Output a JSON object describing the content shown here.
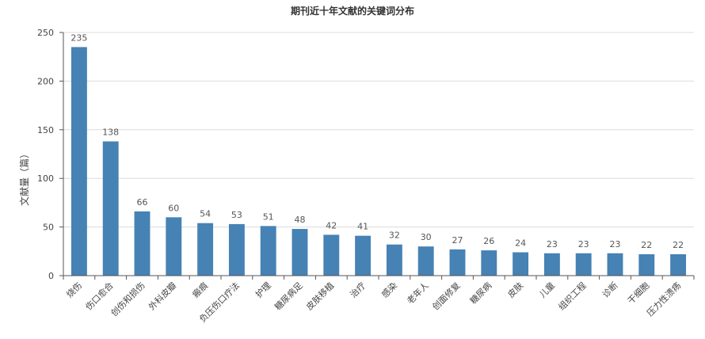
{
  "chart_data": {
    "type": "bar",
    "title": "期刊近十年文献的关键词分布",
    "ylabel": "文献量（篇）",
    "xlabel": "",
    "ylim": [
      0,
      250
    ],
    "yticks": [
      0,
      50,
      100,
      150,
      200,
      250
    ],
    "grid": true,
    "bar_color": "#4682b4",
    "categories": [
      "烧伤",
      "伤口愈合",
      "创伤和损伤",
      "外科皮瓣",
      "瘢痕",
      "负压伤口疗法",
      "护理",
      "糖尿病足",
      "皮肤移植",
      "治疗",
      "感染",
      "老年人",
      "创面修复",
      "糖尿病",
      "皮肤",
      "儿童",
      "组织工程",
      "诊断",
      "干细胞",
      "压力性溃疡"
    ],
    "values": [
      235,
      138,
      66,
      60,
      54,
      53,
      51,
      48,
      42,
      41,
      32,
      30,
      27,
      26,
      24,
      23,
      23,
      23,
      22,
      22
    ]
  }
}
